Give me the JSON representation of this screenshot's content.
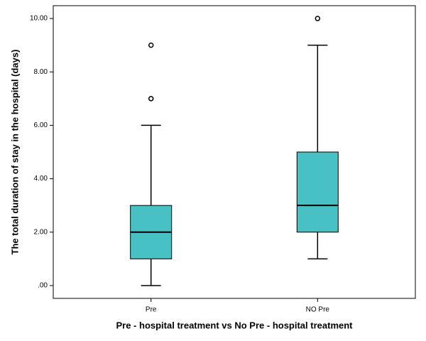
{
  "chart_data": {
    "type": "box",
    "y_label": "The total duration of stay in the hospital (days)",
    "x_label": "Pre - hospital treatment vs No Pre - hospital treatment",
    "categories": [
      "Pre",
      "NO Pre"
    ],
    "boxes": [
      {
        "min": 0,
        "q1": 1,
        "median": 2,
        "q3": 3,
        "max": 6,
        "outliers": [
          7,
          9
        ]
      },
      {
        "min": 1,
        "q1": 2,
        "median": 3,
        "q3": 5,
        "max": 9,
        "outliers": [
          10
        ]
      }
    ],
    "color": "#48c1c4",
    "ylim": [
      -0.48,
      10.48
    ],
    "yticks": [
      {
        "value": 0,
        "label": ".00"
      },
      {
        "value": 2,
        "label": "2.00"
      },
      {
        "value": 4,
        "label": "4.00"
      },
      {
        "value": 6,
        "label": "6.00"
      },
      {
        "value": 8,
        "label": "8.00"
      },
      {
        "value": 10,
        "label": "10.00"
      }
    ]
  }
}
